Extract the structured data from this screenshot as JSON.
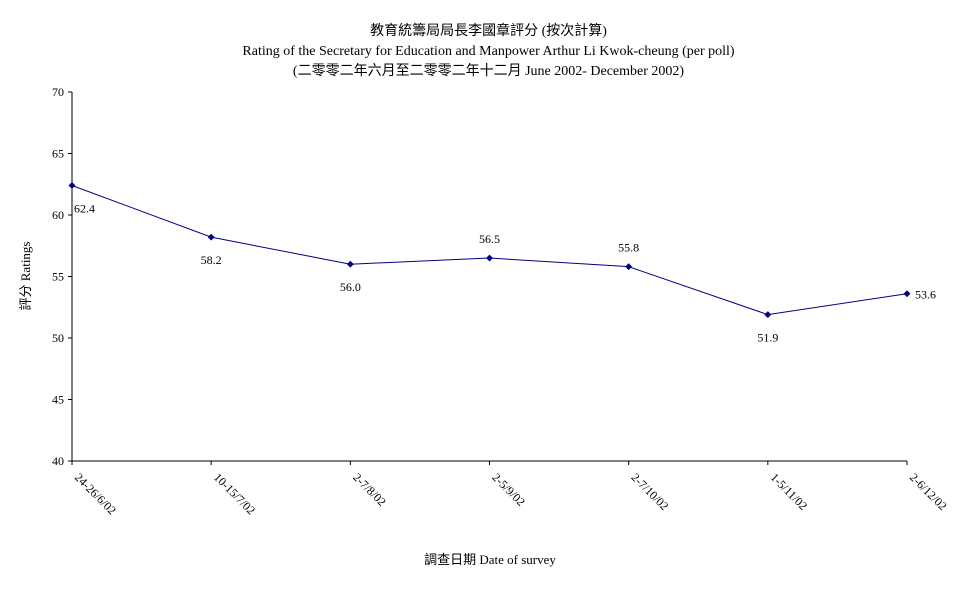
{
  "chart_data": {
    "type": "line",
    "title": "教育統籌局局長李國章評分 (按次計算)",
    "subtitle": "Rating of the Secretary for Education and Manpower Arthur Li Kwok-cheung  (per poll)",
    "subtitle2": "(二零零二年六月至二零零二年十二月 June 2002- December 2002)",
    "xlabel": "調查日期 Date of survey",
    "ylabel": "評分 Ratings",
    "ylim": [
      40,
      70
    ],
    "yticks": [
      40,
      45,
      50,
      55,
      60,
      65,
      70
    ],
    "categories": [
      "24-26/6/02",
      "10-15/7/02",
      "2-7/8/02",
      "2-5/9/02",
      "2-7/10/02",
      "1-5/11/02",
      "2-6/12/02"
    ],
    "values": [
      62.4,
      58.2,
      56.0,
      56.5,
      55.8,
      51.9,
      53.6
    ],
    "data_labels": [
      "62.4",
      "58.2",
      "56.0",
      "56.5",
      "55.8",
      "51.9",
      "53.6"
    ],
    "grid": false,
    "legend": "none",
    "line_color": "#000080"
  }
}
